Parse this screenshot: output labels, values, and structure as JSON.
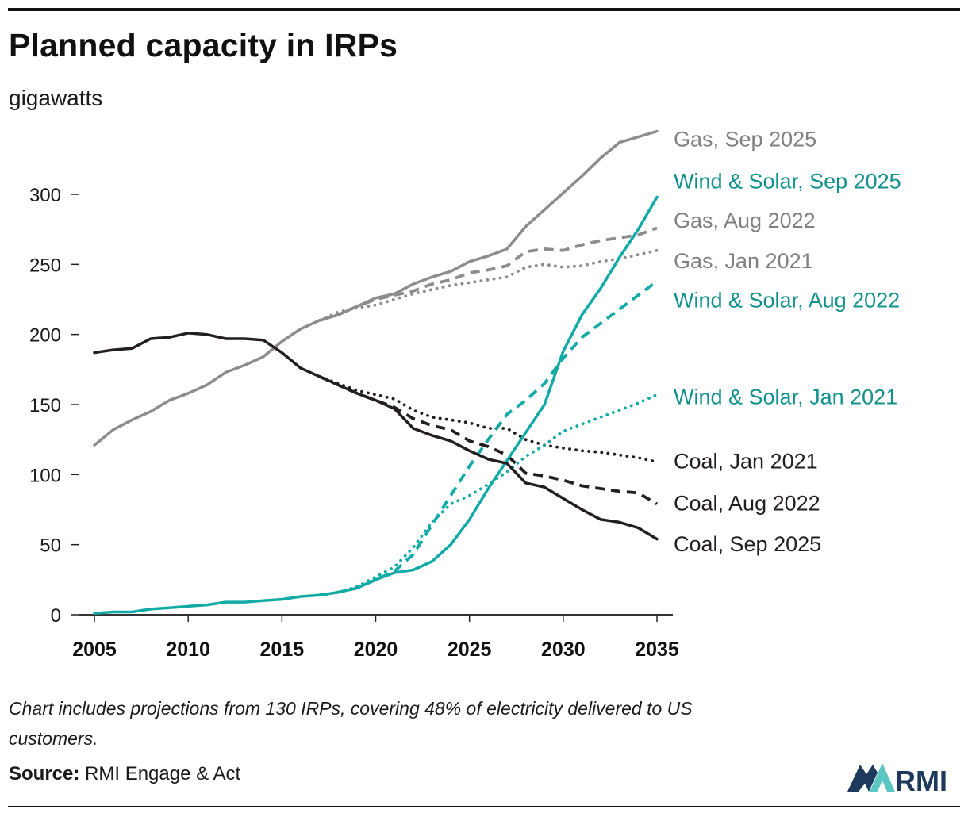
{
  "header": {
    "title": "Planned capacity in IRPs",
    "subtitle": "gigawatts"
  },
  "footer": {
    "note": "Chart includes projections from 130 IRPs, covering 48% of electricity delivered to US customers.",
    "source_label": "Source:",
    "source_text": "RMI Engage & Act",
    "logo_text": "RMI"
  },
  "colors": {
    "coal": "#231f20",
    "gas": "#8c8c8c",
    "wind_solar": "#12aaa7",
    "wind_solar_label": "#12908c",
    "gas_label": "#808080",
    "logo_dark": "#1d3a5c",
    "logo_light": "#5bc6c4"
  },
  "chart_data": {
    "type": "line",
    "title": "Planned capacity in IRPs",
    "ylabel": "gigawatts",
    "xlabel": "",
    "xlim": [
      2005,
      2035
    ],
    "ylim": [
      0,
      340
    ],
    "x_ticks": [
      2005,
      2010,
      2015,
      2020,
      2025,
      2030,
      2035
    ],
    "y_ticks": [
      0,
      50,
      100,
      150,
      200,
      250,
      300
    ],
    "grid": false,
    "legend": "direct labels at right end of lines",
    "series": [
      {
        "name": "Gas, Sep 2025",
        "fuel": "gas",
        "style": "solid",
        "x": [
          2005,
          2006,
          2007,
          2008,
          2009,
          2010,
          2011,
          2012,
          2013,
          2014,
          2015,
          2016,
          2017,
          2018,
          2019,
          2020,
          2021,
          2022,
          2023,
          2024,
          2025,
          2026,
          2027,
          2028,
          2029,
          2030,
          2031,
          2032,
          2033,
          2034,
          2035
        ],
        "values": [
          121,
          132,
          139,
          145,
          153,
          158,
          164,
          173,
          178,
          184,
          195,
          204,
          210,
          214,
          220,
          226,
          229,
          236,
          241,
          245,
          252,
          256,
          261,
          277,
          289,
          301,
          313,
          326,
          337,
          341,
          345
        ]
      },
      {
        "name": "Wind & Solar, Sep 2025",
        "fuel": "wind_solar",
        "style": "solid",
        "x": [
          2005,
          2006,
          2007,
          2008,
          2009,
          2010,
          2011,
          2012,
          2013,
          2014,
          2015,
          2016,
          2017,
          2018,
          2019,
          2020,
          2021,
          2022,
          2023,
          2024,
          2025,
          2026,
          2027,
          2028,
          2029,
          2030,
          2031,
          2032,
          2033,
          2034,
          2035
        ],
        "values": [
          1,
          2,
          2,
          4,
          5,
          6,
          7,
          9,
          9,
          10,
          11,
          13,
          14,
          16,
          19,
          25,
          30,
          32,
          38,
          50,
          68,
          90,
          110,
          130,
          150,
          188,
          214,
          233,
          255,
          275,
          298
        ]
      },
      {
        "name": "Gas, Aug 2022",
        "fuel": "gas",
        "style": "dashed",
        "x": [
          2017,
          2018,
          2019,
          2020,
          2021,
          2022,
          2023,
          2024,
          2025,
          2026,
          2027,
          2028,
          2029,
          2030,
          2031,
          2032,
          2033,
          2034,
          2035
        ],
        "values": [
          210,
          214,
          220,
          225,
          228,
          231,
          236,
          239,
          244,
          246,
          249,
          259,
          261,
          260,
          264,
          267,
          269,
          271,
          276
        ]
      },
      {
        "name": "Gas, Jan 2021",
        "fuel": "gas",
        "style": "dotted",
        "x": [
          2017,
          2018,
          2019,
          2020,
          2021,
          2022,
          2023,
          2024,
          2025,
          2026,
          2027,
          2028,
          2029,
          2030,
          2031,
          2032,
          2033,
          2034,
          2035
        ],
        "values": [
          210,
          216,
          219,
          221,
          225,
          229,
          232,
          235,
          237,
          239,
          241,
          248,
          250,
          248,
          249,
          252,
          254,
          257,
          260
        ]
      },
      {
        "name": "Wind & Solar, Aug 2022",
        "fuel": "wind_solar",
        "style": "dashed",
        "x": [
          2017,
          2018,
          2019,
          2020,
          2021,
          2022,
          2023,
          2024,
          2025,
          2026,
          2027,
          2028,
          2029,
          2030,
          2031,
          2032,
          2033,
          2034,
          2035
        ],
        "values": [
          14,
          16,
          19,
          25,
          31,
          43,
          64,
          85,
          106,
          125,
          143,
          153,
          165,
          183,
          198,
          208,
          218,
          228,
          238
        ]
      },
      {
        "name": "Wind & Solar, Jan 2021",
        "fuel": "wind_solar",
        "style": "dotted",
        "x": [
          2017,
          2018,
          2019,
          2020,
          2021,
          2022,
          2023,
          2024,
          2025,
          2026,
          2027,
          2028,
          2029,
          2030,
          2031,
          2032,
          2033,
          2034,
          2035
        ],
        "values": [
          14,
          16,
          20,
          27,
          34,
          48,
          66,
          79,
          85,
          93,
          102,
          113,
          121,
          131,
          136,
          141,
          146,
          151,
          157
        ]
      },
      {
        "name": "Coal, Jan 2021",
        "fuel": "coal",
        "style": "dotted",
        "x": [
          2017,
          2018,
          2019,
          2020,
          2021,
          2022,
          2023,
          2024,
          2025,
          2026,
          2027,
          2028,
          2029,
          2030,
          2031,
          2032,
          2033,
          2034,
          2035
        ],
        "values": [
          170,
          165,
          160,
          157,
          154,
          146,
          141,
          139,
          137,
          133,
          133,
          125,
          121,
          119,
          117,
          116,
          114,
          112,
          109
        ]
      },
      {
        "name": "Coal, Aug 2022",
        "fuel": "coal",
        "style": "dashed",
        "x": [
          2017,
          2018,
          2019,
          2020,
          2021,
          2022,
          2023,
          2024,
          2025,
          2026,
          2027,
          2028,
          2029,
          2030,
          2031,
          2032,
          2033,
          2034,
          2035
        ],
        "values": [
          170,
          164,
          158,
          153,
          148,
          140,
          135,
          132,
          124,
          120,
          114,
          101,
          99,
          96,
          92,
          90,
          88,
          87,
          79
        ]
      },
      {
        "name": "Coal, Sep 2025",
        "fuel": "coal",
        "style": "solid",
        "x": [
          2005,
          2006,
          2007,
          2008,
          2009,
          2010,
          2011,
          2012,
          2013,
          2014,
          2015,
          2016,
          2017,
          2018,
          2019,
          2020,
          2021,
          2022,
          2023,
          2024,
          2025,
          2026,
          2027,
          2028,
          2029,
          2030,
          2031,
          2032,
          2033,
          2034,
          2035
        ],
        "values": [
          187,
          189,
          190,
          197,
          198,
          201,
          200,
          197,
          197,
          196,
          187,
          176,
          170,
          164,
          158,
          153,
          147,
          133,
          128,
          124,
          117,
          111,
          108,
          94,
          91,
          83,
          75,
          68,
          66,
          62,
          54
        ]
      }
    ],
    "labels": [
      {
        "text": "Gas, Sep 2025",
        "fuel": "gas",
        "anchor_value": 340
      },
      {
        "text": "Wind & Solar, Sep 2025",
        "fuel": "wind_solar",
        "anchor_value": 310
      },
      {
        "text": "Gas, Aug 2022",
        "fuel": "gas",
        "anchor_value": 282
      },
      {
        "text": "Gas, Jan 2021",
        "fuel": "gas",
        "anchor_value": 253
      },
      {
        "text": "Wind & Solar, Aug 2022",
        "fuel": "wind_solar",
        "anchor_value": 225
      },
      {
        "text": "Wind & Solar, Jan 2021",
        "fuel": "wind_solar",
        "anchor_value": 156
      },
      {
        "text": "Coal, Jan 2021",
        "fuel": "coal",
        "anchor_value": 110
      },
      {
        "text": "Coal, Aug 2022",
        "fuel": "coal",
        "anchor_value": 80
      },
      {
        "text": "Coal, Sep 2025",
        "fuel": "coal",
        "anchor_value": 51
      }
    ]
  }
}
